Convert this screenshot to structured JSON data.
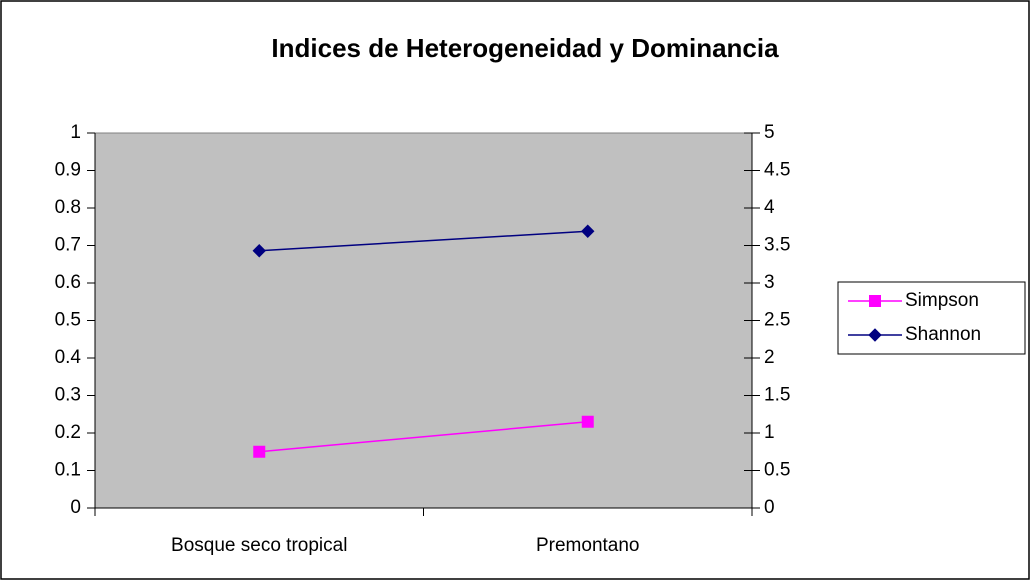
{
  "chart_data": {
    "type": "line",
    "title": "Indices de Heterogeneidad y Dominancia",
    "categories": [
      "Bosque seco tropical",
      "Premontano"
    ],
    "series": [
      {
        "name": "Simpson",
        "color": "#ff00ff",
        "marker": "square",
        "values": [
          0.15,
          0.23
        ]
      },
      {
        "name": "Shannon",
        "color": "#000080",
        "marker": "diamond",
        "axis": "y2",
        "values": [
          3.43,
          3.69
        ]
      }
    ],
    "ylim": [
      0,
      1
    ],
    "yticks": [
      0,
      0.1,
      0.2,
      0.3,
      0.4,
      0.5,
      0.6,
      0.7,
      0.8,
      0.9,
      1
    ],
    "y2lim": [
      0,
      5
    ],
    "y2ticks": [
      0,
      0.5,
      1,
      1.5,
      2,
      2.5,
      3,
      3.5,
      4,
      4.5,
      5
    ],
    "grid": false,
    "legend": "right",
    "plot_background": "#c0c0c0"
  }
}
